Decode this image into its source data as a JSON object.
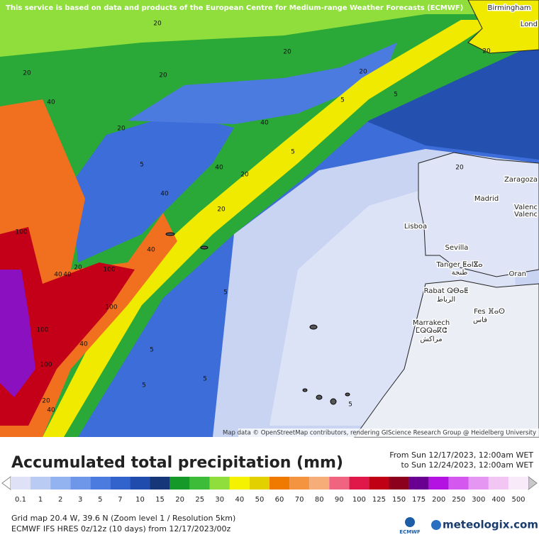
{
  "header": {
    "attribution": "This service is based on data and products of the European Centre for Medium-range Weather Forecasts (ECMWF)",
    "map_credit": "Map data © OpenStreetMap contributors, rendering GIScience Research Group @ Heidelberg University"
  },
  "map": {
    "cities": [
      "Birmingham",
      "Lond",
      "Zaragoza",
      "Madrid",
      "Valenc",
      "Valenc",
      "Lisboa",
      "Sevilla",
      "Tanger ⵟⴰⵏⴵⴰ",
      "طنجة",
      "Oran",
      "Rabat ⵕⴱⴰⵟ",
      "الرباط",
      "Fes ⴼⴰⵙ",
      "فاس",
      "Marrakech",
      "ⵎⵕⵕⴰⴽⵛ",
      "مراكش"
    ],
    "contour_labels": [
      "20",
      "20",
      "20",
      "20",
      "20",
      "40",
      "20",
      "40",
      "5",
      "5",
      "5",
      "5",
      "40",
      "20",
      "40",
      "20",
      "100",
      "40",
      "20",
      "40",
      "40",
      "100",
      "100",
      "100",
      "40",
      "100",
      "5",
      "5",
      "5",
      "20",
      "40",
      "5",
      "5",
      "20",
      "20"
    ]
  },
  "legend": {
    "title": "Accumulated total precipitation (mm)",
    "period_from": "From Sun 12/17/2023, 12:00am WET",
    "period_to": "to Sun 12/24/2023, 12:00am WET",
    "values": [
      0.1,
      1,
      2,
      3,
      5,
      7,
      10,
      15,
      20,
      25,
      30,
      40,
      50,
      60,
      70,
      80,
      90,
      100,
      125,
      150,
      175,
      200,
      250,
      300,
      400,
      500
    ],
    "colors": [
      "#dfe2f6",
      "#b9cbf3",
      "#93b2f0",
      "#6e97ea",
      "#4c7be0",
      "#3262cc",
      "#1f4cad",
      "#16367a",
      "#159a2a",
      "#3dbc3a",
      "#8fde3c",
      "#f4f200",
      "#e2d000",
      "#f07a00",
      "#f59440",
      "#f7ad78",
      "#f06482",
      "#e0184a",
      "#c00014",
      "#8c001e",
      "#6a0092",
      "#b312e2",
      "#d458f0",
      "#e596f2",
      "#f2c6f2",
      "#f8eaf8"
    ]
  },
  "footer": {
    "grid_info": "Grid map 20.4 W, 39.6 N (Zoom level 1 / Resolution 5km)",
    "model_info": "ECMWF IFS HRES 0z/12z (10 days) from 12/17/2023/00z",
    "ecmwf_logo": "ECMWF",
    "site": "meteologix.com"
  }
}
